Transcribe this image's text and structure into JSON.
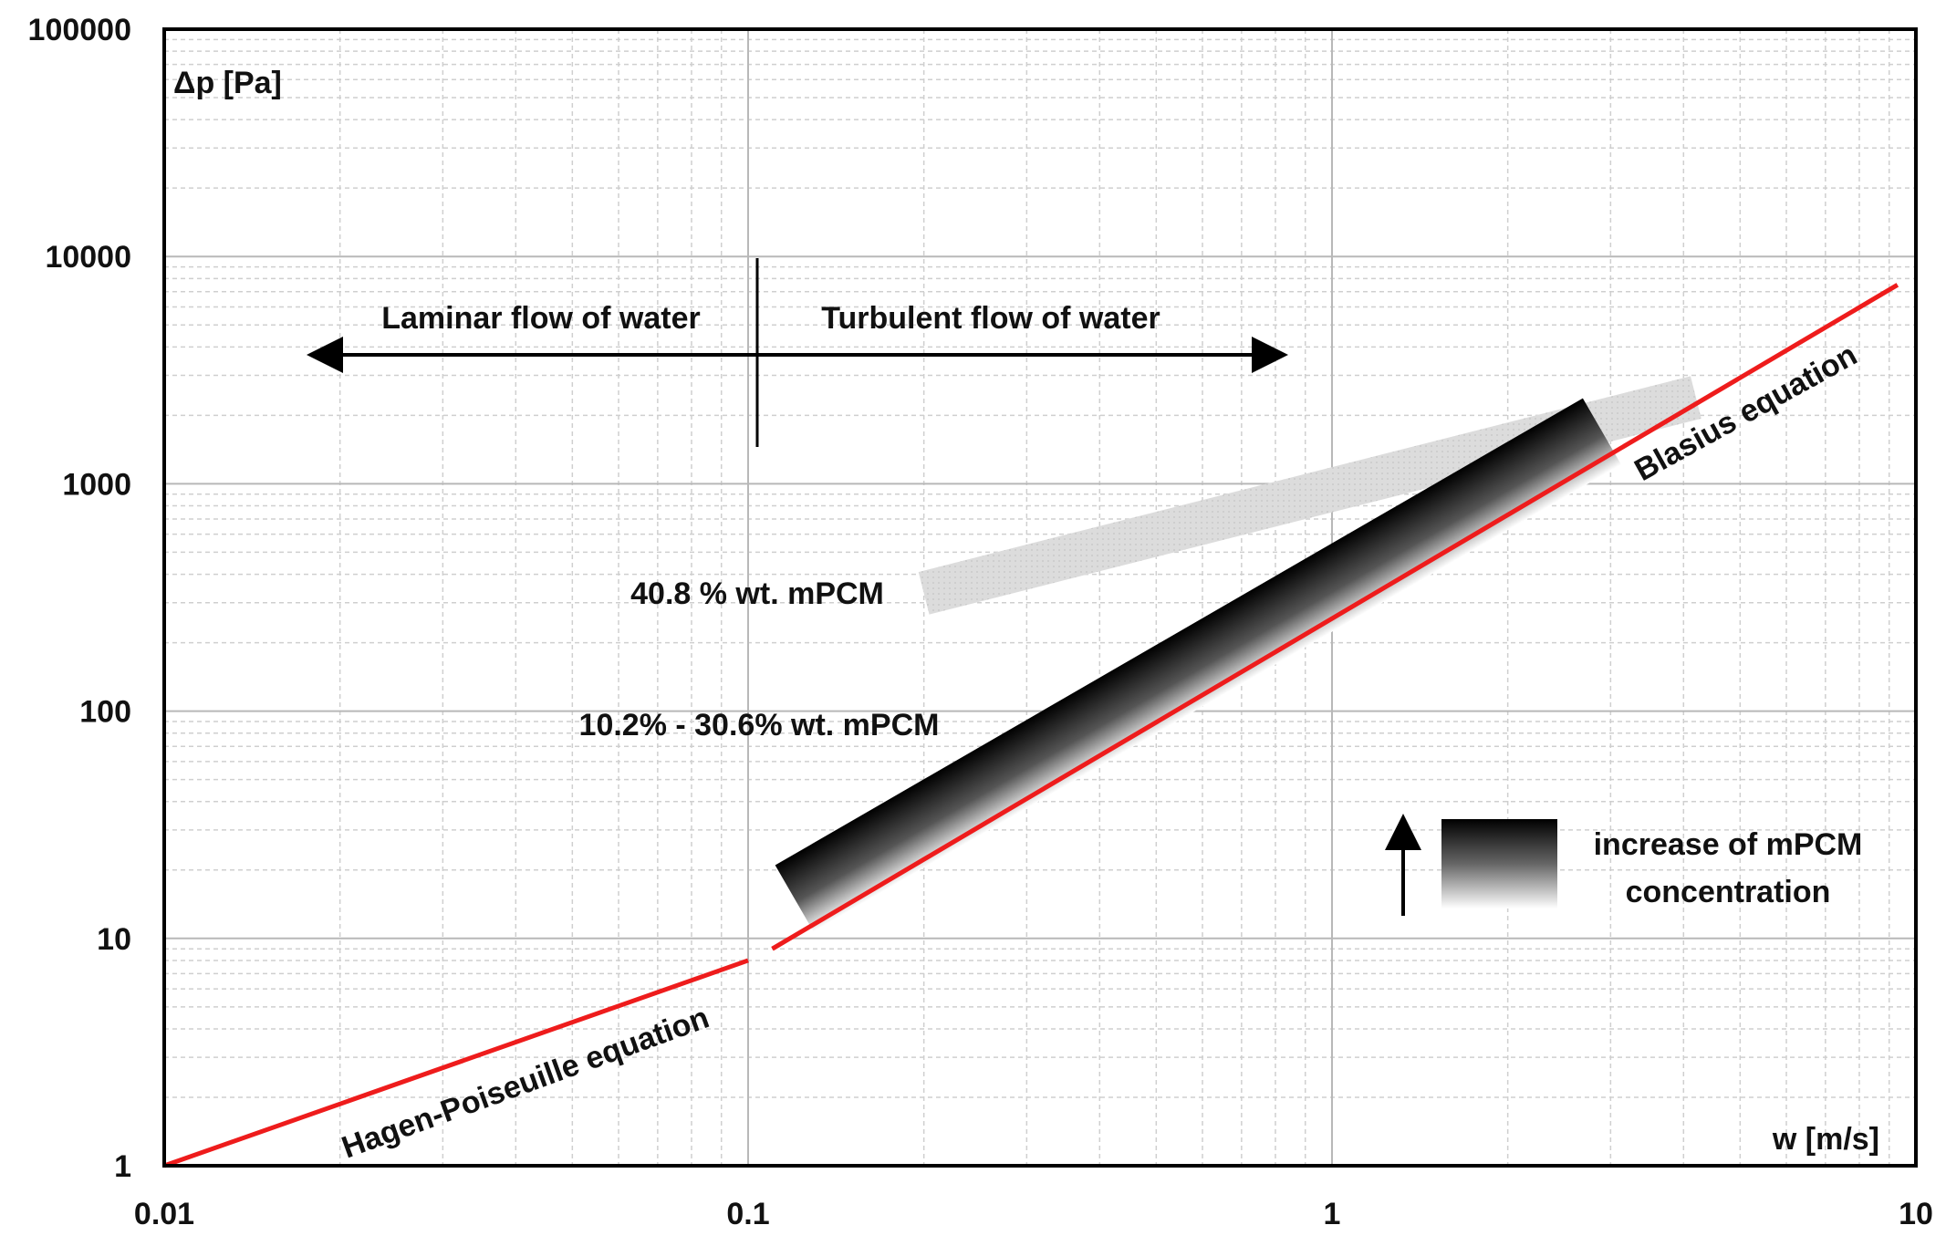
{
  "chart_data": {
    "type": "line",
    "x_scale": "log",
    "y_scale": "log",
    "xlim": [
      0.01,
      10
    ],
    "ylim": [
      1,
      100000
    ],
    "x_ticks": [
      "0.01",
      "0.1",
      "1",
      "10"
    ],
    "y_ticks": [
      "1",
      "10",
      "100",
      "1000",
      "10000",
      "100000"
    ],
    "xlabel": "w [m/s]",
    "ylabel": "Δp [Pa]",
    "grid": true,
    "series": [
      {
        "name": "Hagen-Poiseuille equation",
        "color": "#ee1c1c",
        "x": [
          0.01,
          0.1
        ],
        "y": [
          1,
          8
        ]
      },
      {
        "name": "Blasius equation",
        "color": "#ee1c1c",
        "x": [
          0.11,
          9.3
        ],
        "y": [
          9,
          7500
        ]
      }
    ],
    "bands": [
      {
        "label": "40.8 % wt. mPCM",
        "color": "#d9d9d9",
        "x": [
          0.2,
          4.2
        ],
        "y_center": [
          330,
          2400
        ]
      },
      {
        "label": "10.2% - 30.6% wt. mPCM",
        "gradient": [
          "#000000",
          "#ffffff"
        ],
        "x": [
          0.12,
          2.9
        ],
        "y_center": [
          15,
          1700
        ]
      }
    ],
    "regions": {
      "divider_x": 0.1,
      "left_label": "Laminar flow of water",
      "right_label": "Turbulent flow of water"
    },
    "legend": {
      "text_line1": "increase of mPCM",
      "text_line2": "concentration",
      "placement": "bottom-right"
    }
  }
}
